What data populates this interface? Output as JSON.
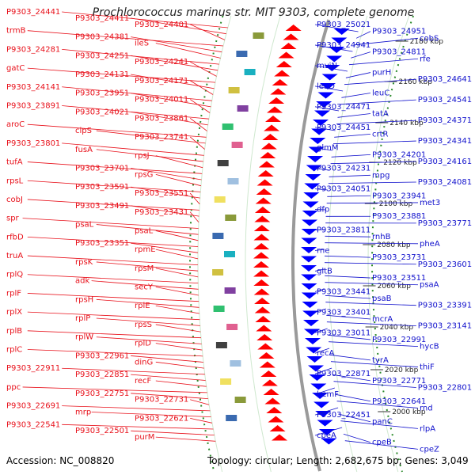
{
  "title": "Prochlorococcus marinus str. MIT 9303, complete genome",
  "accession": "Accession: NC_008820",
  "topology": "Topology: circular; Length: 2,682,675 bp; Genes: 3,049",
  "colors": {
    "left_labels": "#e8101a",
    "right_labels": "#1010cc",
    "forward_strand": "#ff0000",
    "reverse_strand": "#0000ff",
    "backbone": "#9a9a9a",
    "tick_dots": "#2a8a2a"
  },
  "ticks": [
    "2180 kbp",
    "2160 kbp",
    "2140 kbp",
    "2120 kbp",
    "2100 kbp",
    "2080 kbp",
    "2060 kbp",
    "2040 kbp",
    "2020 kbp",
    "2000 kbp"
  ],
  "left_labels": [
    "P9303_24441",
    "P9303_24411",
    "P9303_24401",
    "trmB",
    "P9303_24381",
    "ileS",
    "P9303_24281",
    "P9303_24251",
    "P9303_24241",
    "gatC",
    "P9303_24131",
    "P9303_24171",
    "P9303_24141",
    "P9303_23951",
    "P9303_24011",
    "P9303_23891",
    "P9303_24021",
    "P9303_23861",
    "aroC",
    "clpS",
    "P9303_23741",
    "P9303_23801",
    "fusA",
    "rpsJ",
    "tufA",
    "P9303_23701",
    "rpsG",
    "rpsL",
    "P9303_23591",
    "P9303_23551",
    "cobJ",
    "P9303_23491",
    "P9303_23431",
    "spr",
    "psaL",
    "psaL",
    "rfbD",
    "P9303_23351",
    "rpmE",
    "truA",
    "rpsK",
    "rpsM",
    "rplQ",
    "adk",
    "secY",
    "rplF",
    "rpsH",
    "rplE",
    "rplX",
    "rplP",
    "rpsS",
    "rplB",
    "rplW",
    "rplD",
    "rplC",
    "P9303_22961",
    "dinG",
    "P9303_22911",
    "P9303_22851",
    "recF",
    "ppc",
    "P9303_22751",
    "P9303_22731",
    "P9303_22691",
    "mrp",
    "P9303_22621",
    "P9303_22541",
    "P9303_22501",
    "purM"
  ],
  "right_labels": [
    "P9303_25021",
    "P9303_24951",
    "cobS",
    "P9303_24941",
    "P9303_24811",
    "rfe",
    "mviN",
    "purH",
    "P9303_24641",
    "leuD",
    "leuC",
    "P9303_24541",
    "P9303_24471",
    "tatA",
    "P9303_24371",
    "P9303_24451",
    "crtR",
    "P9303_24341",
    "glmM",
    "P9303_24201",
    "P9303_24161",
    "P9303_24231",
    "mpg",
    "P9303_24081",
    "P9303_24051",
    "P9303_23941",
    "met3",
    "dfp",
    "P9303_23881",
    "P9303_23771",
    "P9303_23811",
    "rnhB",
    "pheA",
    "rne",
    "P9303_23731",
    "P9303_23601",
    "gltB",
    "P9303_23511",
    "psaA",
    "P9303_23441",
    "psaB",
    "P9303_23391",
    "P9303_23401",
    "mcrA",
    "P9303_23141",
    "P9303_23011",
    "P9303_22991",
    "hycB",
    "recA",
    "tyrA",
    "thiF",
    "P9303_22871",
    "P9303_22771",
    "P9303_22801",
    "hemF",
    "P9303_22641",
    "rnd",
    "P9303_22451",
    "panC",
    "rlpA",
    "cpeA",
    "cpeB",
    "cpeZ"
  ]
}
